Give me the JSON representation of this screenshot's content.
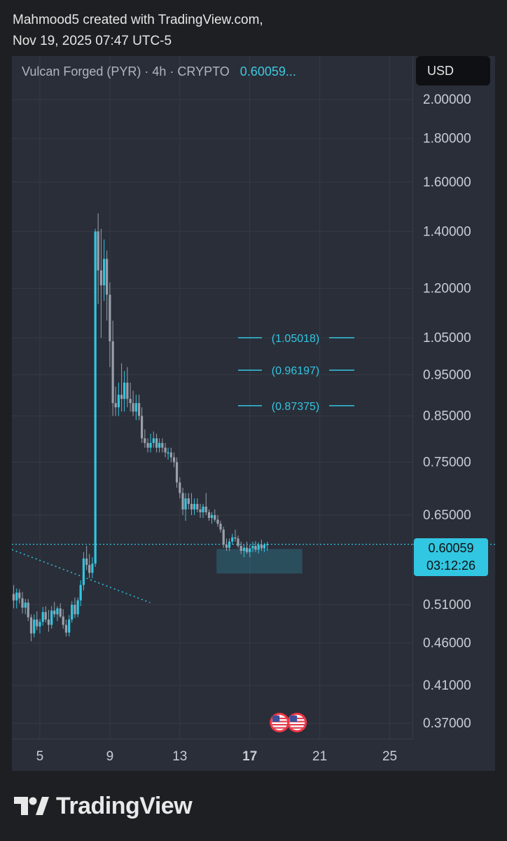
{
  "header": {
    "line1": "Mahmood5 created with TradingView.com,",
    "line2": "Nov 19, 2025 07:47 UTC-5"
  },
  "legend": {
    "symbol": "Vulcan Forged (PYR) · 4h · CRYPTO",
    "price": "0.60059..."
  },
  "currency_button": "USD",
  "last_price": {
    "value": "0.60059",
    "countdown": "03:12:26"
  },
  "footer": {
    "brand": "TradingView"
  },
  "colors": {
    "up": "#31c6e1",
    "down": "#9aa0ab",
    "grid": "#363a45",
    "background": "#2a2e39"
  },
  "chart_data": {
    "type": "candlestick",
    "title": "",
    "xlabel": "",
    "ylabel": "",
    "x_ticks": [
      "5",
      "9",
      "13",
      "17",
      "21",
      "25"
    ],
    "x_tick_bold": "17",
    "x_range_days": [
      3.4,
      26.3
    ],
    "y_ticks": [
      {
        "value": 2.0,
        "label": "2.00000"
      },
      {
        "value": 1.8,
        "label": "1.80000"
      },
      {
        "value": 1.6,
        "label": "1.60000"
      },
      {
        "value": 1.4,
        "label": "1.40000"
      },
      {
        "value": 1.2,
        "label": "1.20000"
      },
      {
        "value": 1.05,
        "label": "1.05000"
      },
      {
        "value": 0.95,
        "label": "0.95000"
      },
      {
        "value": 0.85,
        "label": "0.85000"
      },
      {
        "value": 0.75,
        "label": "0.75000"
      },
      {
        "value": 0.65,
        "label": "0.65000"
      },
      {
        "value": 0.51,
        "label": "0.51000"
      },
      {
        "value": 0.46,
        "label": "0.46000"
      },
      {
        "value": 0.41,
        "label": "0.41000"
      },
      {
        "value": 0.37,
        "label": "0.37000"
      }
    ],
    "y_scale": "log",
    "y_range": [
      0.355,
      2.25
    ],
    "last_price": 0.60059,
    "levels": [
      {
        "label": "(1.05018)",
        "value": 1.05018
      },
      {
        "label": "(0.96197)",
        "value": 0.96197
      },
      {
        "label": "(0.87375)",
        "value": 0.87375
      }
    ],
    "support_zone": {
      "x_start": 15.1,
      "x_end": 20.0,
      "y_low": 0.555,
      "y_high": 0.593
    },
    "trendline": {
      "x_start": 3.4,
      "y_start": 0.592,
      "x_end": 11.3,
      "y_end": 0.513
    },
    "event_markers": [
      {
        "x": 18.7
      },
      {
        "x": 19.7
      }
    ],
    "candles": [
      [
        3.5,
        0.525,
        0.538,
        0.505,
        0.516
      ],
      [
        3.67,
        0.516,
        0.533,
        0.505,
        0.527
      ],
      [
        3.83,
        0.527,
        0.532,
        0.512,
        0.519
      ],
      [
        4.0,
        0.519,
        0.528,
        0.498,
        0.506
      ],
      [
        4.17,
        0.506,
        0.518,
        0.497,
        0.513
      ],
      [
        4.33,
        0.513,
        0.518,
        0.488,
        0.493
      ],
      [
        4.5,
        0.493,
        0.497,
        0.462,
        0.472
      ],
      [
        4.67,
        0.472,
        0.497,
        0.467,
        0.49
      ],
      [
        4.83,
        0.49,
        0.501,
        0.476,
        0.481
      ],
      [
        5.0,
        0.481,
        0.491,
        0.472,
        0.487
      ],
      [
        5.17,
        0.487,
        0.507,
        0.482,
        0.5
      ],
      [
        5.33,
        0.5,
        0.508,
        0.486,
        0.49
      ],
      [
        5.5,
        0.49,
        0.503,
        0.474,
        0.483
      ],
      [
        5.67,
        0.483,
        0.508,
        0.478,
        0.502
      ],
      [
        5.83,
        0.502,
        0.514,
        0.493,
        0.497
      ],
      [
        6.0,
        0.497,
        0.508,
        0.488,
        0.505
      ],
      [
        6.17,
        0.505,
        0.512,
        0.492,
        0.494
      ],
      [
        6.33,
        0.494,
        0.504,
        0.478,
        0.483
      ],
      [
        6.5,
        0.483,
        0.49,
        0.468,
        0.473
      ],
      [
        6.67,
        0.473,
        0.496,
        0.468,
        0.49
      ],
      [
        6.83,
        0.49,
        0.515,
        0.486,
        0.51
      ],
      [
        7.0,
        0.51,
        0.52,
        0.492,
        0.497
      ],
      [
        7.17,
        0.497,
        0.52,
        0.493,
        0.516
      ],
      [
        7.33,
        0.516,
        0.545,
        0.508,
        0.538
      ],
      [
        7.5,
        0.538,
        0.588,
        0.53,
        0.578
      ],
      [
        7.67,
        0.578,
        0.598,
        0.56,
        0.568
      ],
      [
        7.83,
        0.568,
        0.585,
        0.548,
        0.556
      ],
      [
        8.0,
        0.556,
        0.58,
        0.548,
        0.57
      ],
      [
        8.17,
        0.57,
        1.41,
        0.565,
        1.4
      ],
      [
        8.33,
        1.4,
        1.47,
        1.15,
        1.26
      ],
      [
        8.5,
        1.26,
        1.41,
        1.05,
        1.21
      ],
      [
        8.67,
        1.21,
        1.37,
        1.16,
        1.3
      ],
      [
        8.83,
        1.3,
        1.33,
        1.1,
        1.18
      ],
      [
        9.0,
        1.18,
        1.22,
        0.97,
        1.04
      ],
      [
        9.17,
        1.04,
        1.1,
        0.85,
        0.88
      ],
      [
        9.33,
        0.88,
        0.92,
        0.85,
        0.87
      ],
      [
        9.5,
        0.87,
        0.93,
        0.85,
        0.9
      ],
      [
        9.67,
        0.9,
        0.98,
        0.86,
        0.89
      ],
      [
        9.83,
        0.89,
        0.96,
        0.86,
        0.93
      ],
      [
        10.0,
        0.93,
        0.97,
        0.87,
        0.89
      ],
      [
        10.17,
        0.89,
        0.93,
        0.86,
        0.88
      ],
      [
        10.33,
        0.88,
        0.91,
        0.85,
        0.86
      ],
      [
        10.5,
        0.86,
        0.9,
        0.84,
        0.88
      ],
      [
        10.67,
        0.88,
        0.9,
        0.84,
        0.85
      ],
      [
        10.83,
        0.85,
        0.87,
        0.79,
        0.8
      ],
      [
        11.0,
        0.8,
        0.82,
        0.78,
        0.79
      ],
      [
        11.17,
        0.79,
        0.8,
        0.77,
        0.78
      ],
      [
        11.33,
        0.78,
        0.81,
        0.77,
        0.79
      ],
      [
        11.5,
        0.79,
        0.815,
        0.78,
        0.8
      ],
      [
        11.67,
        0.8,
        0.81,
        0.77,
        0.78
      ],
      [
        11.83,
        0.78,
        0.8,
        0.77,
        0.79
      ],
      [
        12.0,
        0.79,
        0.8,
        0.77,
        0.78
      ],
      [
        12.17,
        0.78,
        0.79,
        0.76,
        0.77
      ],
      [
        12.33,
        0.77,
        0.78,
        0.755,
        0.77
      ],
      [
        12.5,
        0.77,
        0.78,
        0.75,
        0.76
      ],
      [
        12.67,
        0.76,
        0.77,
        0.74,
        0.75
      ],
      [
        12.83,
        0.75,
        0.76,
        0.7,
        0.71
      ],
      [
        13.0,
        0.71,
        0.72,
        0.68,
        0.69
      ],
      [
        13.17,
        0.69,
        0.7,
        0.65,
        0.66
      ],
      [
        13.33,
        0.66,
        0.69,
        0.64,
        0.68
      ],
      [
        13.5,
        0.68,
        0.69,
        0.66,
        0.67
      ],
      [
        13.67,
        0.67,
        0.69,
        0.65,
        0.66
      ],
      [
        13.83,
        0.66,
        0.68,
        0.65,
        0.67
      ],
      [
        14.0,
        0.67,
        0.68,
        0.655,
        0.66
      ],
      [
        14.17,
        0.66,
        0.67,
        0.645,
        0.655
      ],
      [
        14.33,
        0.655,
        0.67,
        0.645,
        0.665
      ],
      [
        14.5,
        0.665,
        0.69,
        0.65,
        0.655
      ],
      [
        14.67,
        0.655,
        0.66,
        0.64,
        0.645
      ],
      [
        14.83,
        0.645,
        0.655,
        0.635,
        0.65
      ],
      [
        15.0,
        0.65,
        0.66,
        0.638,
        0.642
      ],
      [
        15.17,
        0.642,
        0.65,
        0.63,
        0.635
      ],
      [
        15.33,
        0.635,
        0.64,
        0.62,
        0.625
      ],
      [
        15.5,
        0.625,
        0.63,
        0.595,
        0.6
      ],
      [
        15.67,
        0.6,
        0.61,
        0.59,
        0.595
      ],
      [
        15.83,
        0.595,
        0.61,
        0.59,
        0.605
      ],
      [
        16.0,
        0.605,
        0.618,
        0.6,
        0.612
      ],
      [
        16.17,
        0.612,
        0.625,
        0.605,
        0.61
      ],
      [
        16.33,
        0.61,
        0.615,
        0.595,
        0.598
      ],
      [
        16.5,
        0.598,
        0.605,
        0.585,
        0.59
      ],
      [
        16.67,
        0.59,
        0.6,
        0.58,
        0.595
      ],
      [
        16.83,
        0.595,
        0.605,
        0.585,
        0.588
      ],
      [
        17.0,
        0.588,
        0.6,
        0.58,
        0.594
      ],
      [
        17.17,
        0.594,
        0.605,
        0.588,
        0.598
      ],
      [
        17.33,
        0.598,
        0.606,
        0.588,
        0.592
      ],
      [
        17.5,
        0.592,
        0.604,
        0.586,
        0.6
      ],
      [
        17.67,
        0.6,
        0.608,
        0.59,
        0.594
      ],
      [
        17.83,
        0.594,
        0.603,
        0.588,
        0.6
      ],
      [
        18.0,
        0.6,
        0.605,
        0.59,
        0.601
      ]
    ]
  }
}
